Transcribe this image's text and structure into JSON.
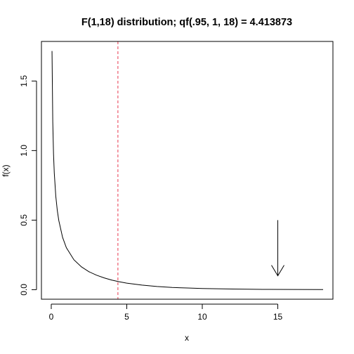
{
  "chart_data": {
    "type": "line",
    "title": "F(1,18) distribution; qf(.95, 1, 18) = 4.413873",
    "xlabel": "x",
    "ylabel": "f(x)",
    "xlim": [
      -0.65,
      18.65
    ],
    "ylim": [
      -0.0685,
      1.7845
    ],
    "x_ticks": [
      0,
      5,
      10,
      15
    ],
    "x_tick_labels": [
      "0",
      "5",
      "10",
      "15"
    ],
    "y_ticks": [
      0.0,
      0.5,
      1.0,
      1.5
    ],
    "y_tick_labels": [
      "0.0",
      "0.5",
      "1.0",
      "1.5"
    ],
    "grid": false,
    "series": [
      {
        "color": "#000000",
        "x": [
          0.05,
          0.1,
          0.15,
          0.2,
          0.3,
          0.4,
          0.5,
          0.75,
          1.0,
          1.5,
          2.0,
          2.5,
          3.0,
          3.5,
          4.0,
          4.5,
          5.0,
          6.0,
          7.0,
          8.0,
          9.0,
          10.0,
          12.0,
          14.0,
          16.0,
          18.0
        ],
        "y": [
          1.716,
          1.205,
          0.976,
          0.839,
          0.672,
          0.569,
          0.497,
          0.376,
          0.302,
          0.215,
          0.164,
          0.129,
          0.104,
          0.085,
          0.069,
          0.057,
          0.047,
          0.033,
          0.023,
          0.016,
          0.012,
          0.0085,
          0.0045,
          0.0025,
          0.0014,
          0.0008
        ]
      }
    ],
    "critical_value_line": {
      "x": 4.413873,
      "color": "#e8384f",
      "style": "dashed"
    },
    "arrow": {
      "x": 15,
      "y_from": 0.5,
      "y_to": 0.1,
      "color": "#000000"
    }
  }
}
